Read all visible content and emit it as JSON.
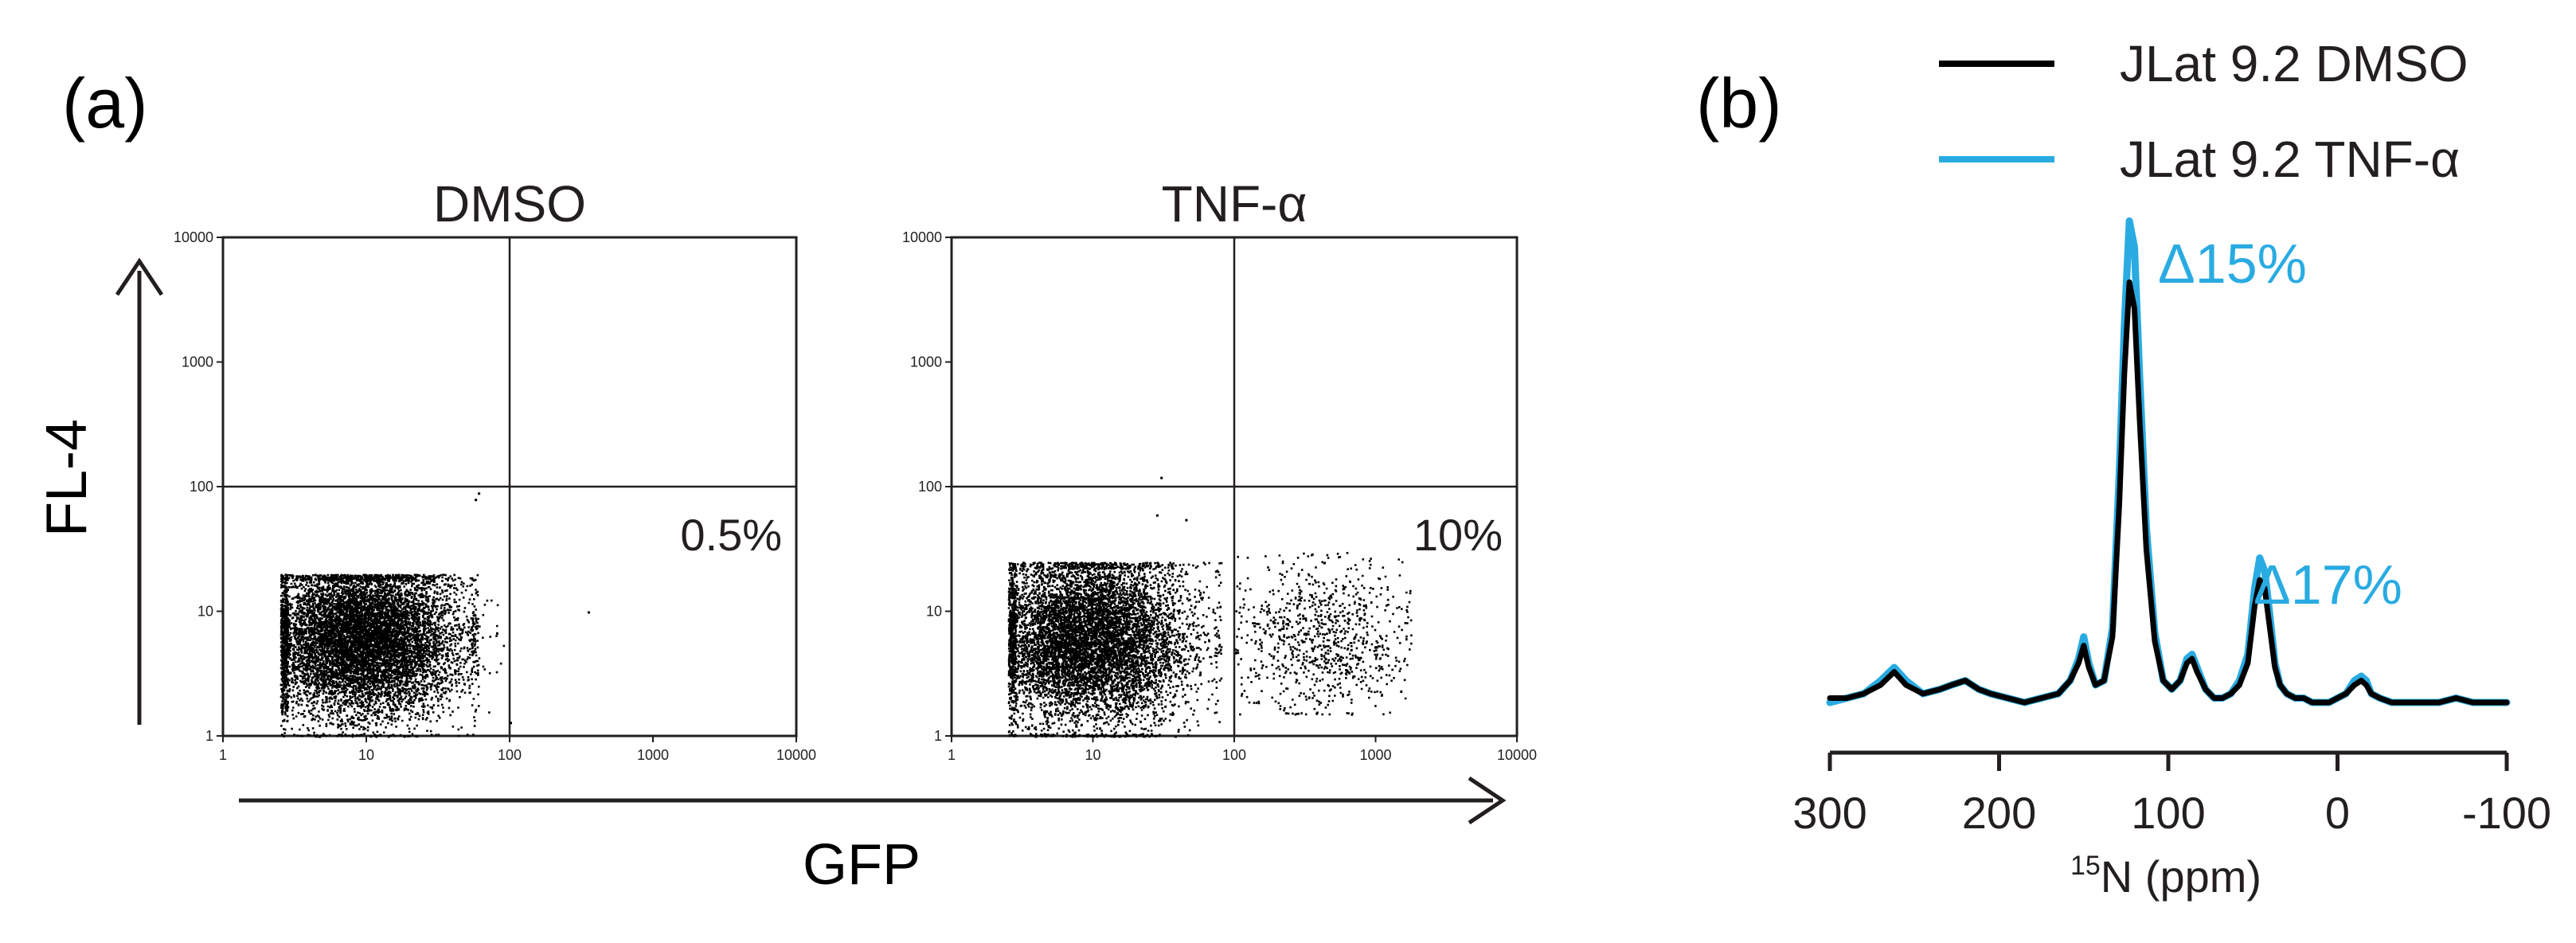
{
  "panel_labels": {
    "a": "(a)",
    "b": "(b)"
  },
  "colors": {
    "ink": "#231f20",
    "dmso": "#000000",
    "tnf": "#29abe2",
    "annotation": "#29abe2"
  },
  "chart_data": [
    {
      "type": "scatter",
      "panel": "(a)",
      "title": "DMSO",
      "xlabel": "GFP",
      "ylabel": "FL-4",
      "xscale": "log",
      "yscale": "log",
      "xlim": [
        1,
        10000
      ],
      "ylim": [
        1,
        10000
      ],
      "x_ticks": [
        "1",
        "10",
        "100",
        "1000",
        "10000"
      ],
      "y_ticks": [
        "1",
        "10",
        "100",
        "1000",
        "10000"
      ],
      "quadrant_gates": {
        "x": 100,
        "y": 100
      },
      "annotation": "0.5%",
      "populations": [
        {
          "center": [
            9,
            6
          ],
          "x_range": [
            2.5,
            60
          ],
          "y_range": [
            1,
            20
          ],
          "weight": 0.97
        },
        {
          "center": [
            30,
            6
          ],
          "x_range": [
            10,
            90
          ],
          "y_range": [
            1.5,
            18
          ],
          "weight": 0.025
        }
      ],
      "outliers": [
        [
          60,
          90
        ],
        [
          57,
          80
        ],
        [
          350,
          10
        ],
        [
          100,
          1.3
        ]
      ]
    },
    {
      "type": "scatter",
      "panel": "(a)",
      "title": "TNF-α",
      "xlabel": "GFP",
      "ylabel": "FL-4",
      "xscale": "log",
      "yscale": "log",
      "xlim": [
        1,
        10000
      ],
      "ylim": [
        1,
        10000
      ],
      "x_ticks": [
        "1",
        "10",
        "100",
        "1000",
        "10000"
      ],
      "y_ticks": [
        "1",
        "10",
        "100",
        "1000",
        "10000"
      ],
      "quadrant_gates": {
        "x": 100,
        "y": 100
      },
      "annotation": "10%",
      "populations": [
        {
          "center": [
            9,
            6
          ],
          "x_range": [
            2.5,
            80
          ],
          "y_range": [
            1,
            25
          ],
          "weight": 0.88
        },
        {
          "center": [
            400,
            6
          ],
          "x_range": [
            100,
            1800
          ],
          "y_range": [
            1.5,
            30
          ],
          "weight": 0.1
        }
      ],
      "outliers": [
        [
          30,
          120
        ],
        [
          28,
          60
        ],
        [
          45,
          55
        ]
      ]
    },
    {
      "type": "line",
      "panel": "(b)",
      "xlabel": "15N (ppm)",
      "xlabel_superscript": "15",
      "xlabel_main": "N (ppm)",
      "x_ticks": [
        300,
        200,
        100,
        0,
        -100
      ],
      "xlim": [
        300,
        -100
      ],
      "ylim": [
        0,
        1.15
      ],
      "legend": {
        "position": "top-right"
      },
      "series": [
        {
          "name": "JLat 9.2 DMSO",
          "color": "#000000",
          "x": [
            300,
            290,
            280,
            270,
            262,
            255,
            245,
            235,
            228,
            220,
            212,
            205,
            195,
            185,
            175,
            165,
            158,
            153,
            150,
            147,
            143,
            138,
            133,
            129,
            126,
            123,
            120,
            117,
            113,
            108,
            103,
            98,
            93,
            89,
            86,
            83,
            78,
            73,
            68,
            63,
            58,
            53,
            49,
            46,
            43,
            40,
            37,
            34,
            30,
            25,
            20,
            15,
            10,
            5,
            0,
            -5,
            -10,
            -14,
            -17,
            -20,
            -25,
            -32,
            -40,
            -50,
            -60,
            -70,
            -80,
            -90,
            -100
          ],
          "y": [
            0.01,
            0.01,
            0.02,
            0.04,
            0.07,
            0.04,
            0.02,
            0.03,
            0.04,
            0.05,
            0.03,
            0.02,
            0.01,
            0.0,
            0.01,
            0.02,
            0.05,
            0.09,
            0.13,
            0.08,
            0.04,
            0.05,
            0.15,
            0.45,
            0.75,
            0.96,
            0.9,
            0.65,
            0.35,
            0.14,
            0.05,
            0.03,
            0.05,
            0.09,
            0.1,
            0.07,
            0.03,
            0.01,
            0.01,
            0.02,
            0.04,
            0.09,
            0.22,
            0.28,
            0.26,
            0.17,
            0.08,
            0.04,
            0.02,
            0.01,
            0.01,
            0.0,
            0.0,
            0.0,
            0.01,
            0.02,
            0.04,
            0.05,
            0.04,
            0.02,
            0.01,
            0.0,
            0.0,
            0.0,
            0.0,
            0.01,
            0.0,
            0.0,
            0.0
          ]
        },
        {
          "name": "JLat 9.2 TNF-α",
          "color": "#29abe2",
          "x": [
            300,
            290,
            280,
            270,
            262,
            255,
            245,
            235,
            228,
            220,
            212,
            205,
            195,
            185,
            175,
            165,
            158,
            153,
            150,
            147,
            143,
            138,
            133,
            129,
            126,
            123,
            120,
            117,
            113,
            108,
            103,
            98,
            93,
            89,
            86,
            83,
            78,
            73,
            68,
            63,
            58,
            53,
            49,
            46,
            43,
            40,
            37,
            34,
            30,
            25,
            20,
            15,
            10,
            5,
            0,
            -5,
            -10,
            -14,
            -17,
            -20,
            -25,
            -32,
            -40,
            -50,
            -60,
            -70,
            -80,
            -90,
            -100
          ],
          "y": [
            0.0,
            0.01,
            0.02,
            0.05,
            0.08,
            0.05,
            0.02,
            0.03,
            0.04,
            0.05,
            0.03,
            0.02,
            0.01,
            0.0,
            0.01,
            0.02,
            0.05,
            0.1,
            0.15,
            0.09,
            0.04,
            0.05,
            0.17,
            0.52,
            0.86,
            1.1,
            1.04,
            0.75,
            0.4,
            0.16,
            0.05,
            0.03,
            0.05,
            0.1,
            0.11,
            0.08,
            0.03,
            0.01,
            0.01,
            0.02,
            0.05,
            0.11,
            0.26,
            0.33,
            0.3,
            0.2,
            0.09,
            0.04,
            0.02,
            0.01,
            0.01,
            0.0,
            0.0,
            0.0,
            0.01,
            0.02,
            0.05,
            0.06,
            0.05,
            0.02,
            0.01,
            0.0,
            0.0,
            0.0,
            0.0,
            0.01,
            0.0,
            0.0,
            0.0
          ]
        }
      ],
      "annotations": [
        {
          "text": "Δ15%",
          "x": 123
        },
        {
          "text": "Δ17%",
          "x": 46
        }
      ]
    }
  ]
}
